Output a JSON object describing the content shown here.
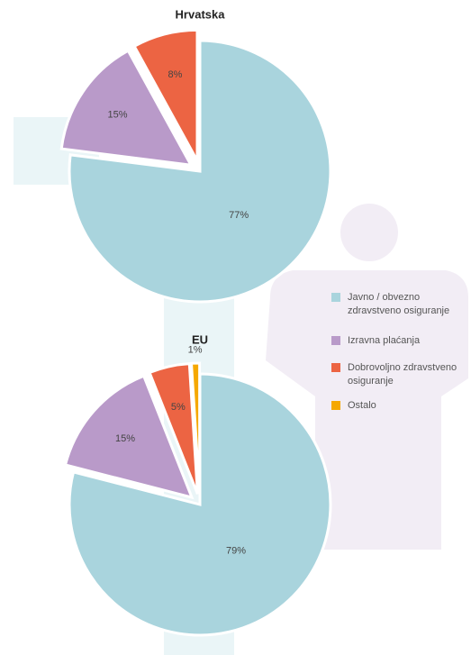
{
  "chart_data": [
    {
      "type": "pie",
      "title": "Hrvatska",
      "categories": [
        "Javno / obvezno zdravstveno osiguranje",
        "Izravna plaćanja",
        "Dobrovoljno zdravstveno osiguranje"
      ],
      "values": [
        77,
        15,
        8
      ],
      "value_labels": [
        "77%",
        "15%",
        "8%"
      ],
      "colors": [
        "#a9d4dd",
        "#b99ac9",
        "#ec6443"
      ],
      "exploded": [
        false,
        true,
        true
      ]
    },
    {
      "type": "pie",
      "title": "EU",
      "categories": [
        "Javno / obvezno zdravstveno osiguranje",
        "Izravna plaćanja",
        "Dobrovoljno zdravstveno osiguranje",
        "Ostalo"
      ],
      "values": [
        79,
        15,
        5,
        1
      ],
      "value_labels": [
        "79%",
        "15%",
        "5%",
        "1%"
      ],
      "colors": [
        "#a9d4dd",
        "#b99ac9",
        "#ec6443",
        "#f5a800"
      ],
      "exploded": [
        false,
        true,
        true,
        true
      ]
    }
  ],
  "legend": [
    {
      "label": [
        "Javno / obvezno",
        "zdravstveno osiguranje"
      ],
      "color": "#a9d4dd"
    },
    {
      "label": [
        "Izravna plaćanja"
      ],
      "color": "#b99ac9"
    },
    {
      "label": [
        "Dobrovoljno zdravstveno",
        "osiguranje"
      ],
      "color": "#ec6443"
    },
    {
      "label": [
        "Ostalo"
      ],
      "color": "#f5a800"
    }
  ]
}
